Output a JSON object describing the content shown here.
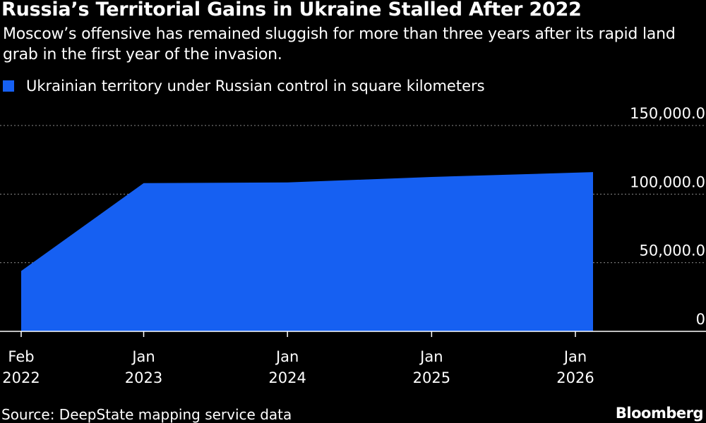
{
  "title": "Russia’s Territorial Gains in Ukraine Stalled After 2022",
  "subtitle": "Moscow’s offensive has remained sluggish for more than three years after its rapid land grab in the first year of the invasion.",
  "source": "Source: DeepState mapping service data",
  "brand": "Bloomberg",
  "colors": {
    "background": "#000000",
    "area": "#1660f2",
    "text": "#ffffff",
    "grid": "#8a8a8a"
  },
  "chart_data": {
    "type": "area",
    "legend": [
      "Ukrainian territory under Russian control in square kilometers"
    ],
    "legend_position": "top-left",
    "series": [
      {
        "name": "Ukrainian territory under Russian control in square kilometers",
        "color": "#1660f2",
        "x": [
          "2022-02-24",
          "2023-01-01",
          "2024-01-01",
          "2025-01-01",
          "2026-01-01"
        ],
        "values": [
          44000,
          108000,
          108500,
          112500,
          116000
        ]
      }
    ],
    "x_ticks": [
      {
        "date": "2022-02-24",
        "line1": "Feb",
        "line2": "2022"
      },
      {
        "date": "2023-01-01",
        "line1": "Jan",
        "line2": "2023"
      },
      {
        "date": "2024-01-01",
        "line1": "Jan",
        "line2": "2024"
      },
      {
        "date": "2025-01-01",
        "line1": "Jan",
        "line2": "2025"
      },
      {
        "date": "2026-01-01",
        "line1": "Jan",
        "line2": "2026"
      }
    ],
    "y_ticks": [
      {
        "value": 0,
        "label": "0"
      },
      {
        "value": 50000,
        "label": "50,000.0"
      },
      {
        "value": 100000,
        "label": "100,000.0"
      },
      {
        "value": 150000,
        "label": "150,000.0"
      }
    ],
    "ylim": [
      0,
      150000
    ],
    "y_axis_side": "right",
    "grid": true
  }
}
